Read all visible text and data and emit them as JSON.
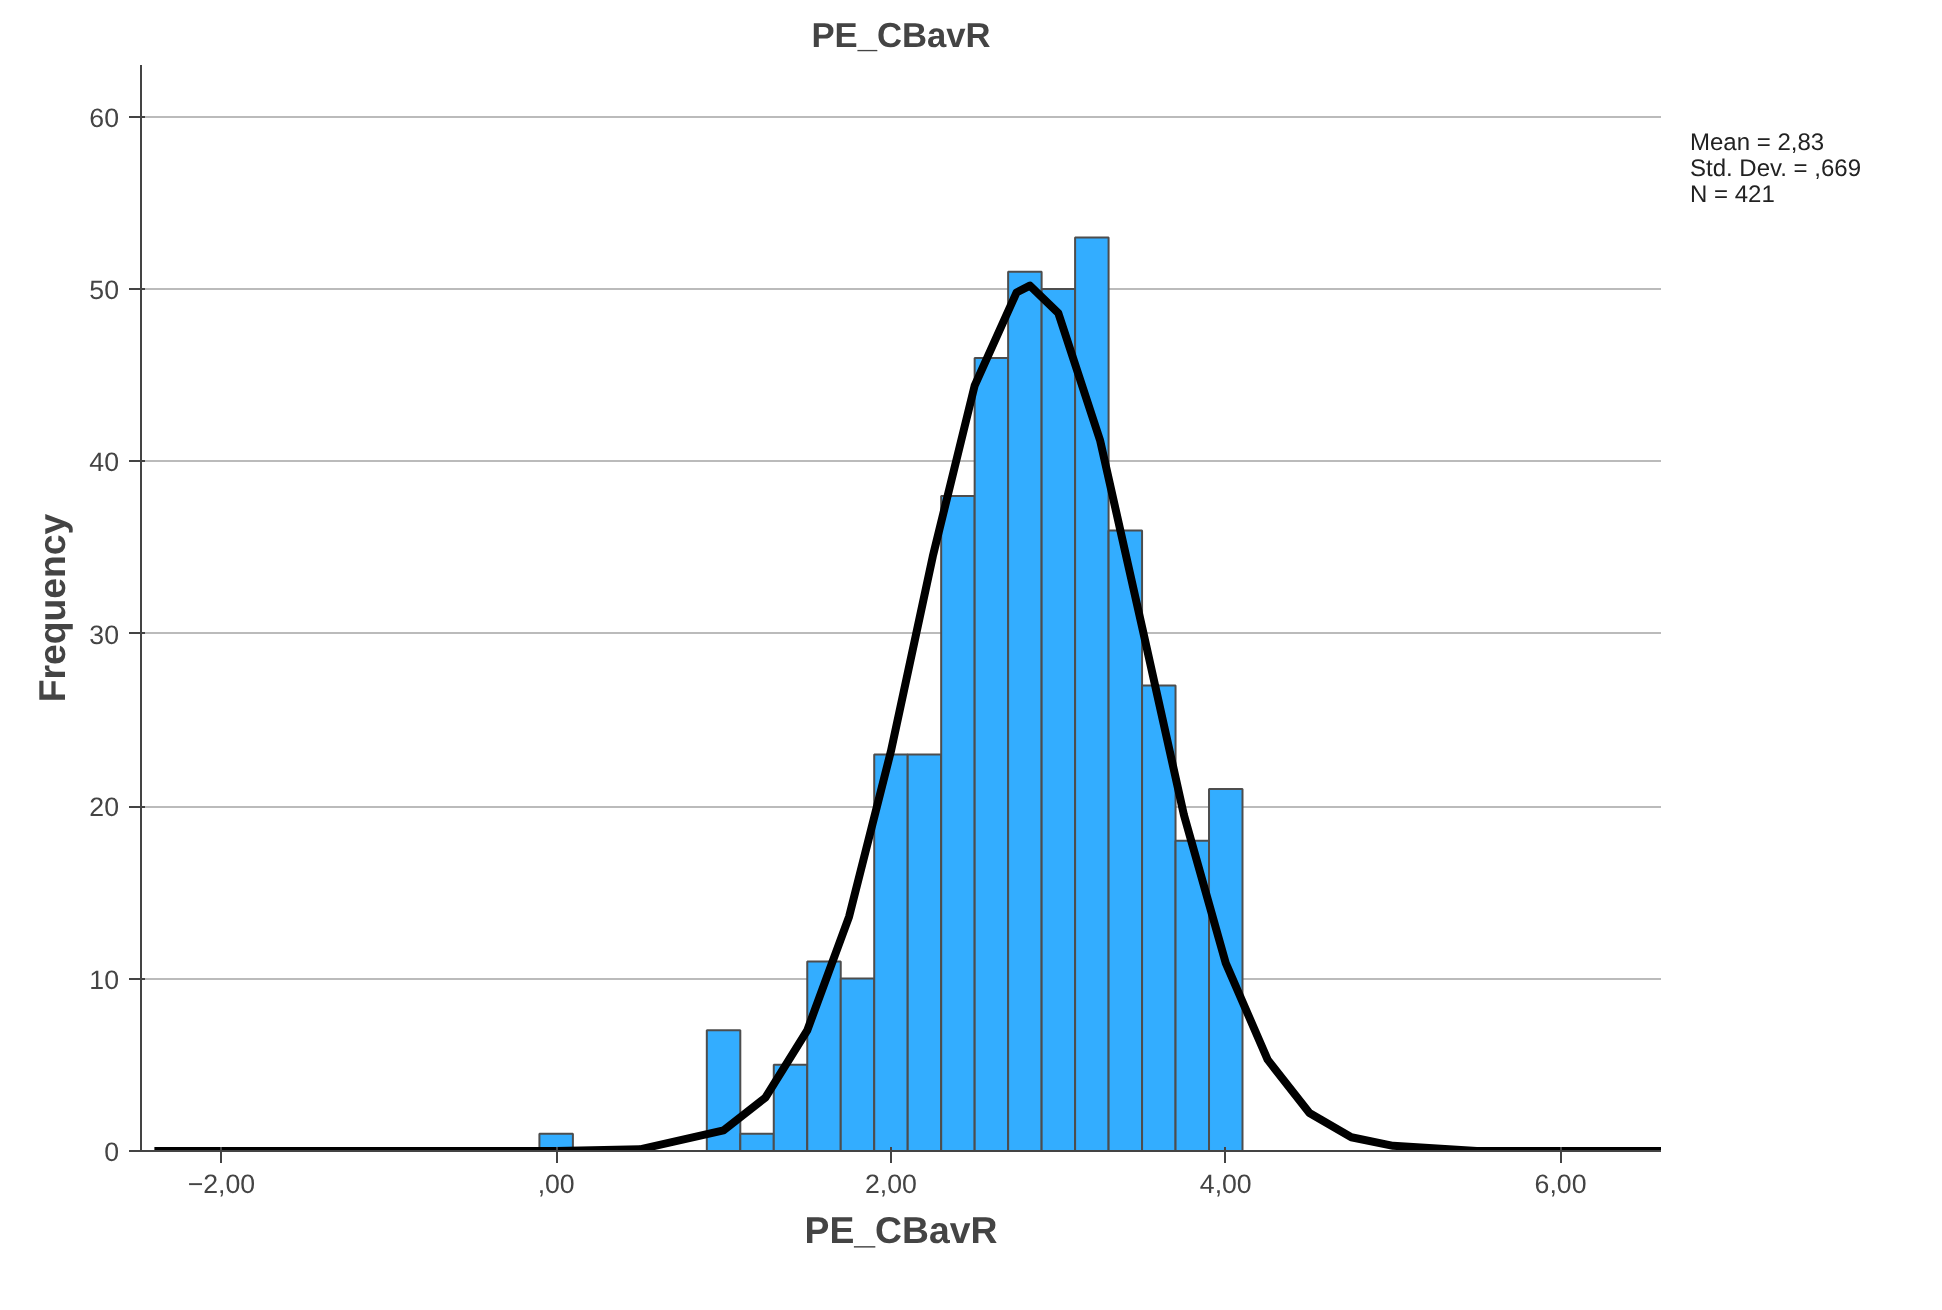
{
  "chart_data": {
    "type": "histogram",
    "title": "PE_CBavR",
    "xlabel": "PE_CBavR",
    "ylabel": "Frequency",
    "bins": [
      -0.1,
      0.1,
      0.3,
      0.5,
      0.7,
      0.9,
      1.1,
      1.3,
      1.5,
      1.7,
      1.9,
      2.1,
      2.3,
      2.5,
      2.7,
      2.9,
      3.1,
      3.3,
      3.5,
      3.7,
      3.9,
      4.1
    ],
    "values": [
      1,
      0,
      0,
      0,
      0,
      7,
      1,
      5,
      11,
      10,
      23,
      23,
      38,
      46,
      51,
      50,
      53,
      36,
      27,
      18,
      21
    ],
    "color": "#33adff",
    "series": [
      {
        "type": "line",
        "color": "#000000",
        "x": [
          -2.4,
          0,
          0.5,
          1.0,
          1.25,
          1.5,
          1.75,
          2.0,
          2.25,
          2.5,
          2.75,
          2.83,
          3.0,
          3.25,
          3.5,
          3.75,
          4.0,
          4.25,
          4.5,
          4.75,
          5.0,
          5.5,
          6.6
        ],
        "values": [
          0,
          0,
          0.1,
          1.2,
          3.1,
          7.0,
          13.6,
          23.2,
          34.5,
          44.4,
          49.8,
          50.2,
          48.6,
          41.2,
          30.4,
          19.5,
          10.9,
          5.3,
          2.2,
          0.8,
          0.3,
          0,
          0
        ]
      }
    ],
    "xlim": [
      -2.48,
      6.6
    ],
    "xticks": [
      {
        "value": -2,
        "label": "−2,00"
      },
      {
        "value": 0,
        "label": ",00"
      },
      {
        "value": 2,
        "label": "2,00"
      },
      {
        "value": 4,
        "label": "4,00"
      },
      {
        "value": 6,
        "label": "6,00"
      }
    ],
    "ylim": [
      0,
      63
    ],
    "yticks": [
      0,
      10,
      20,
      30,
      40,
      50,
      60
    ],
    "grid": "y",
    "annotations": [
      "Mean = 2,83",
      "Std. Dev. = ,669",
      "N = 421"
    ]
  }
}
